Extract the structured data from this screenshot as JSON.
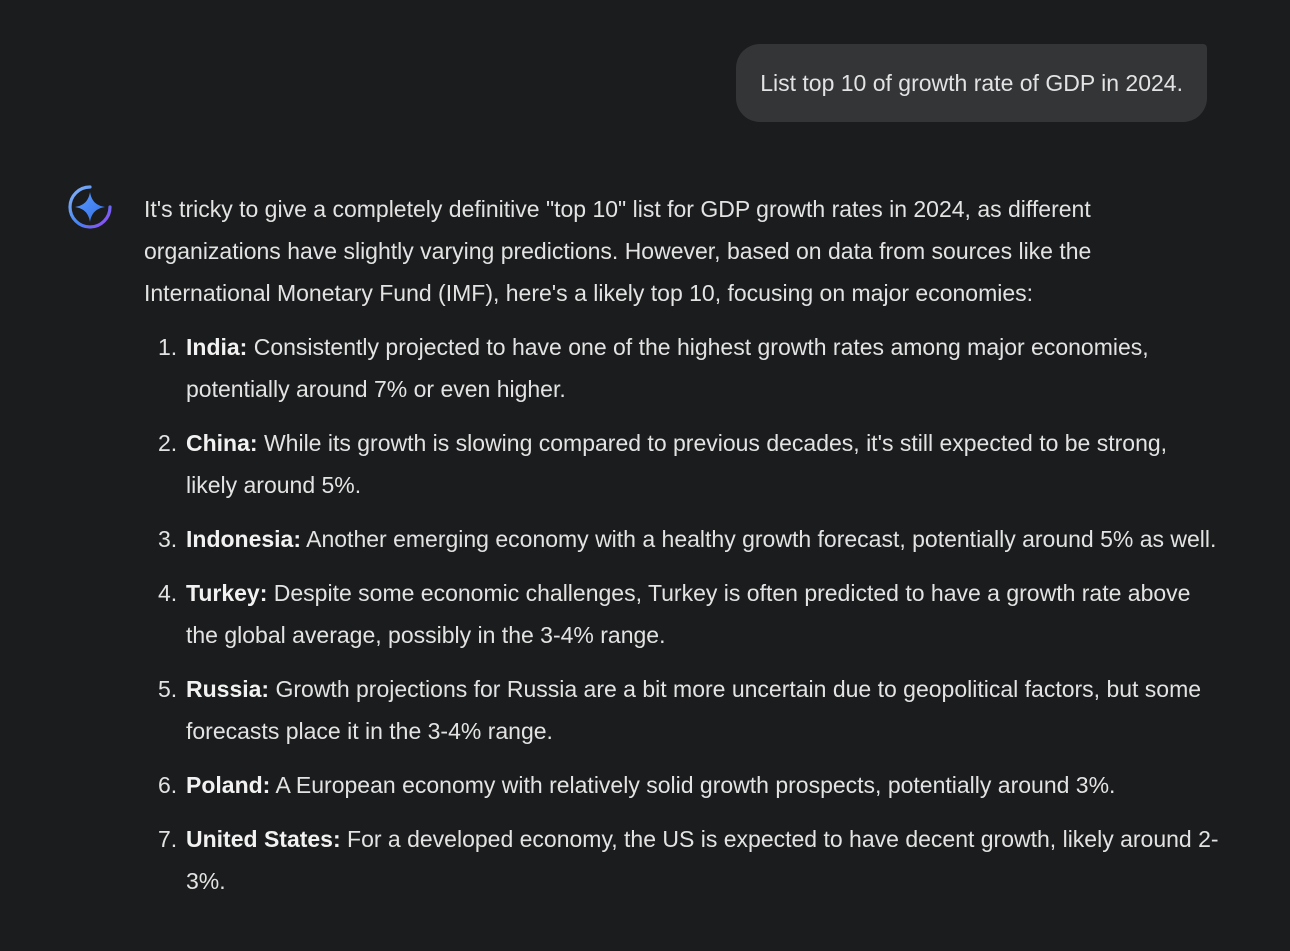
{
  "user_message": "List top 10 of growth rate of GDP in 2024.",
  "assistant_icon": "gemini-sparkle-icon",
  "colors": {
    "background": "#1b1c1d",
    "bubble": "#333537",
    "text": "#e3e3e3",
    "accent_blue": "#4285f4"
  },
  "response": {
    "intro": "It's tricky to give a completely definitive \"top 10\" list for GDP growth rates in 2024, as different organizations have slightly varying predictions. However, based on data from sources like the International Monetary Fund (IMF), here's a likely top 10, focusing on major economies:",
    "items": [
      {
        "num": "1.",
        "term": "India:",
        "text": " Consistently projected to have one of the highest growth rates among major economies, potentially around 7% or even higher."
      },
      {
        "num": "2.",
        "term": "China:",
        "text": " While its growth is slowing compared to previous decades, it's still expected to be strong, likely around 5%."
      },
      {
        "num": "3.",
        "term": "Indonesia:",
        "text": " Another emerging economy with a healthy growth forecast, potentially around 5% as well."
      },
      {
        "num": "4.",
        "term": "Turkey:",
        "text": " Despite some economic challenges, Turkey is often predicted to have a growth rate above the global average, possibly in the 3-4% range."
      },
      {
        "num": "5.",
        "term": "Russia:",
        "text": " Growth projections for Russia are a bit more uncertain due to geopolitical factors, but some forecasts place it in the 3-4% range."
      },
      {
        "num": "6.",
        "term": "Poland:",
        "text": " A European economy with relatively solid growth prospects, potentially around 3%."
      },
      {
        "num": "7.",
        "term": "United States:",
        "text": " For a developed economy, the US is expected to have decent growth, likely around 2-3%."
      }
    ]
  }
}
